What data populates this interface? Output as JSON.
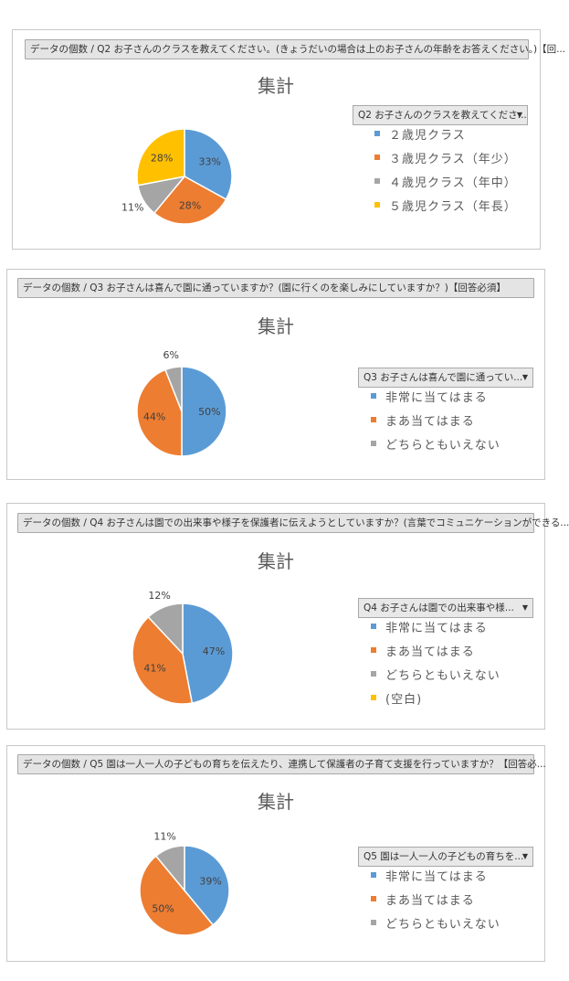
{
  "colors": {
    "blue": "#5b9bd5",
    "orange": "#ed7d31",
    "gray": "#a5a5a5",
    "yellow": "#ffc000"
  },
  "chart_data": [
    {
      "type": "pie",
      "field_label": "データの個数 / Q2 お子さんのクラスを教えてください。(きょうだいの場合は上のお子さんの年齢をお答えください。)【回...",
      "title": "集計",
      "legend_field": "Q2 お子さんのクラスを教えてくださ...",
      "categories": [
        "２歳児クラス",
        "３歳児クラス（年少）",
        "４歳児クラス（年中）",
        "５歳児クラス（年長）"
      ],
      "values": [
        33,
        28,
        11,
        28
      ],
      "value_labels": [
        "33%",
        "28%",
        "11%",
        "28%"
      ],
      "colors": [
        "#5b9bd5",
        "#ed7d31",
        "#a5a5a5",
        "#ffc000"
      ]
    },
    {
      "type": "pie",
      "field_label": "データの個数 / Q3 お子さんは喜んで園に通っていますか？(園に行くのを楽しみにしていますか？)【回答必須】",
      "title": "集計",
      "legend_field": "Q3 お子さんは喜んで園に通ってい...",
      "categories": [
        "非常に当てはまる",
        "まあ当てはまる",
        "どちらともいえない"
      ],
      "values": [
        50,
        44,
        6
      ],
      "value_labels": [
        "50%",
        "44%",
        "6%"
      ],
      "colors": [
        "#5b9bd5",
        "#ed7d31",
        "#a5a5a5"
      ]
    },
    {
      "type": "pie",
      "field_label": "データの個数 / Q4 お子さんは園での出来事や様子を保護者に伝えようとしていますか？(言葉でコミュニケーションができる...",
      "title": "集計",
      "legend_field": "Q4 お子さんは園での出来事や様...",
      "categories": [
        "非常に当てはまる",
        "まあ当てはまる",
        "どちらともいえない",
        "(空白)"
      ],
      "values": [
        47,
        41,
        12,
        0
      ],
      "value_labels": [
        "47%",
        "41%",
        "12%",
        ""
      ],
      "colors": [
        "#5b9bd5",
        "#ed7d31",
        "#a5a5a5",
        "#ffc000"
      ]
    },
    {
      "type": "pie",
      "field_label": "データの個数 / Q5 園は一人一人の子どもの育ちを伝えたり、連携して保護者の子育て支援を行っていますか？【回答必...",
      "title": "集計",
      "legend_field": "Q5 園は一人一人の子どもの育ちを...",
      "categories": [
        "非常に当てはまる",
        "まあ当てはまる",
        "どちらともいえない"
      ],
      "values": [
        39,
        50,
        11
      ],
      "value_labels": [
        "39%",
        "50%",
        "11%"
      ],
      "colors": [
        "#5b9bd5",
        "#ed7d31",
        "#a5a5a5"
      ]
    }
  ]
}
